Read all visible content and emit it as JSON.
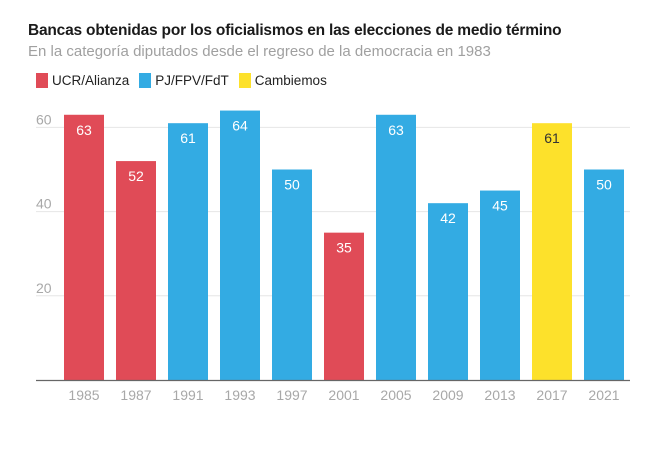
{
  "chart_data": {
    "type": "bar",
    "title": "Bancas obtenidas por los oficialismos en las elecciones de medio término",
    "subtitle": "En la categoría diputados desde el regreso de la democracia en 1983",
    "xlabel": "",
    "ylabel": "",
    "ylim": [
      0,
      66
    ],
    "yticks": [
      20,
      40,
      60
    ],
    "grid": true,
    "legend_position": "top-left",
    "legend": [
      {
        "name": "UCR/Alianza",
        "color": "#e04b57"
      },
      {
        "name": "PJ/FPV/FdT",
        "color": "#33abe3"
      },
      {
        "name": "Cambiemos",
        "color": "#fde12b"
      }
    ],
    "categories": [
      "1985",
      "1987",
      "1991",
      "1993",
      "1997",
      "2001",
      "2005",
      "2009",
      "2013",
      "2017",
      "2021"
    ],
    "values": [
      63,
      52,
      61,
      64,
      50,
      35,
      63,
      42,
      45,
      61,
      50
    ],
    "bar_party": [
      "UCR/Alianza",
      "UCR/Alianza",
      "PJ/FPV/FdT",
      "PJ/FPV/FdT",
      "PJ/FPV/FdT",
      "UCR/Alianza",
      "PJ/FPV/FdT",
      "PJ/FPV/FdT",
      "PJ/FPV/FdT",
      "Cambiemos",
      "PJ/FPV/FdT"
    ],
    "label_colors": {
      "UCR/Alianza": "#ffffff",
      "PJ/FPV/FdT": "#ffffff",
      "Cambiemos": "#333333"
    }
  }
}
